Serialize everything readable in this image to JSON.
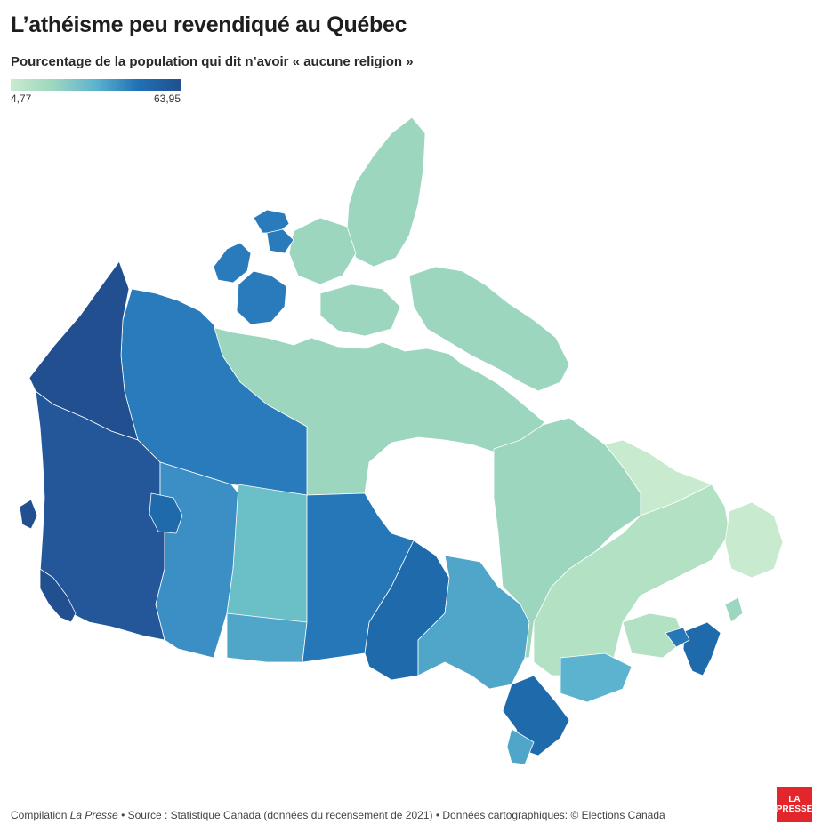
{
  "title": "L’athéisme peu revendiqué au Québec",
  "subtitle": "Pourcentage de la population qui dit n’avoir « aucune religion »",
  "legend": {
    "min_label": "4,77",
    "max_label": "63,95",
    "min_value": 4.77,
    "max_value": 63.95,
    "colors": [
      "#c8ebcf",
      "#9dd6bf",
      "#5cb3cf",
      "#1f72b5",
      "#214f8f"
    ]
  },
  "map_regions": [
    {
      "name": "Yukon",
      "level": "very-high",
      "color": "#214f8f"
    },
    {
      "name": "British Columbia",
      "level": "very-high",
      "color": "#24569a"
    },
    {
      "name": "Northwest Territories",
      "level": "high",
      "color": "#2a7bbb"
    },
    {
      "name": "Nunavut",
      "level": "low",
      "color": "#9dd6bf"
    },
    {
      "name": "Alberta",
      "level": "medium-high",
      "color": "#3b8fc4"
    },
    {
      "name": "Saskatchewan",
      "level": "medium",
      "color": "#6bbfc6"
    },
    {
      "name": "Manitoba",
      "level": "high",
      "color": "#2677b7"
    },
    {
      "name": "Ontario",
      "level": "medium-high",
      "color": "#4fa6c8"
    },
    {
      "name": "Québec",
      "level": "very-low",
      "color": "#b3e1c3"
    },
    {
      "name": "Nova Scotia",
      "level": "high",
      "color": "#1f6aab"
    },
    {
      "name": "Newfoundland and Labrador",
      "level": "very-low",
      "color": "#c8ebcf"
    }
  ],
  "footer": {
    "prefix": "Compilation ",
    "publication": "La Presse",
    "rest": " • Source : Statistique Canada (données du recensement de 2021) • Données cartographiques: © Elections Canada"
  },
  "logo": {
    "line1": "LA",
    "line2": "PRESSE",
    "color": "#e3262b"
  }
}
